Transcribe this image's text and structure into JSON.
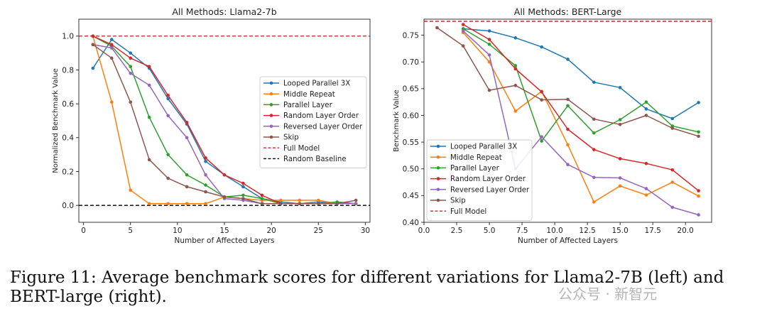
{
  "caption": "Figure 11: Average benchmark scores for different variations for Llama2-7B (left) and BERT-large (right).",
  "watermark": "公众号 · 新智元",
  "chart_data": [
    {
      "type": "line",
      "title": "All Methods: Llama2-7b",
      "xlabel": "Number of Affected Layers",
      "ylabel": "Normalized Benchmark Value",
      "xlim": [
        -0.5,
        30.5
      ],
      "ylim": [
        -0.1,
        1.1
      ],
      "xticks": [
        0,
        5,
        10,
        15,
        20,
        25,
        30
      ],
      "yticks": [
        0.0,
        0.2,
        0.4,
        0.6,
        0.8,
        1.0
      ],
      "ytick_labels": [
        "0.0",
        "0.2",
        "0.4",
        "0.6",
        "0.8",
        "1.0"
      ],
      "legend_position": "center-right",
      "series": [
        {
          "name": "Looped Parallel 3X",
          "color": "#1f77b4",
          "x": [
            1,
            3,
            5,
            7,
            9,
            11,
            13,
            15,
            17,
            19,
            21,
            23,
            25,
            27,
            29
          ],
          "y": [
            0.81,
            0.98,
            0.9,
            0.81,
            0.63,
            0.48,
            0.26,
            0.18,
            0.11,
            0.04,
            0.02,
            0.01,
            0.02,
            0.01,
            0.01
          ]
        },
        {
          "name": "Middle Repeat",
          "color": "#ff7f0e",
          "x": [
            1,
            3,
            5,
            7,
            9,
            11,
            13,
            15,
            17,
            19,
            21,
            23,
            25,
            27,
            29
          ],
          "y": [
            1.0,
            0.61,
            0.09,
            0.01,
            0.01,
            0.01,
            0.01,
            0.05,
            0.04,
            0.03,
            0.03,
            0.03,
            0.03,
            0.01,
            0.01
          ]
        },
        {
          "name": "Parallel Layer",
          "color": "#2ca02c",
          "x": [
            1,
            3,
            5,
            7,
            9,
            11,
            13,
            15,
            17,
            19,
            21,
            23,
            25,
            27,
            29
          ],
          "y": [
            1.0,
            0.94,
            0.82,
            0.52,
            0.3,
            0.18,
            0.12,
            0.05,
            0.06,
            0.04,
            0.01,
            0.01,
            0.01,
            0.02,
            0.01
          ]
        },
        {
          "name": "Random Layer Order",
          "color": "#d62728",
          "x": [
            1,
            3,
            5,
            7,
            9,
            11,
            13,
            15,
            17,
            19,
            21,
            23,
            25,
            27,
            29
          ],
          "y": [
            1.0,
            0.95,
            0.87,
            0.82,
            0.65,
            0.49,
            0.28,
            0.18,
            0.13,
            0.06,
            0.01,
            0.01,
            0.01,
            0.01,
            0.01
          ]
        },
        {
          "name": "Reversed Layer Order",
          "color": "#9467bd",
          "x": [
            1,
            3,
            5,
            7,
            9,
            11,
            13,
            15,
            17,
            19,
            21,
            23,
            25,
            27,
            29
          ],
          "y": [
            0.95,
            0.93,
            0.78,
            0.71,
            0.53,
            0.4,
            0.18,
            0.04,
            0.03,
            0.01,
            0.01,
            0.01,
            0.01,
            0.01,
            0.01
          ]
        },
        {
          "name": "Skip",
          "color": "#8c564b",
          "x": [
            1,
            3,
            5,
            7,
            9,
            11,
            13,
            15,
            17,
            19,
            21,
            23,
            25,
            27,
            29
          ],
          "y": [
            0.95,
            0.87,
            0.61,
            0.27,
            0.16,
            0.11,
            0.08,
            0.05,
            0.04,
            0.01,
            0.01,
            0.01,
            0.01,
            0.01,
            0.03
          ]
        }
      ],
      "reference_lines": [
        {
          "name": "Full Model",
          "value": 1.0,
          "color": "#d62728"
        },
        {
          "name": "Random Baseline",
          "value": 0.0,
          "color": "#000000"
        }
      ]
    },
    {
      "type": "line",
      "title": "All Methods: BERT-Large",
      "xlabel": "Number of Affected Layers",
      "ylabel": "Benchmark Value",
      "xlim": [
        0,
        22
      ],
      "ylim": [
        0.4,
        0.78
      ],
      "xticks": [
        0.0,
        2.5,
        5.0,
        7.5,
        10.0,
        12.5,
        15.0,
        17.5,
        20.0
      ],
      "xtick_labels": [
        "0.0",
        "2.5",
        "5.0",
        "7.5",
        "10.0",
        "12.5",
        "15.0",
        "17.5",
        "20.0"
      ],
      "yticks": [
        0.4,
        0.45,
        0.5,
        0.55,
        0.6,
        0.65,
        0.7,
        0.75
      ],
      "ytick_labels": [
        "0.40",
        "0.45",
        "0.50",
        "0.55",
        "0.60",
        "0.65",
        "0.70",
        "0.75"
      ],
      "legend_position": "lower-left",
      "series": [
        {
          "name": "Looped Parallel 3X",
          "color": "#1f77b4",
          "x": [
            3,
            5,
            7,
            9,
            11,
            13,
            15,
            17,
            19,
            21
          ],
          "y": [
            0.762,
            0.758,
            0.745,
            0.728,
            0.705,
            0.662,
            0.652,
            0.612,
            0.594,
            0.624
          ]
        },
        {
          "name": "Middle Repeat",
          "color": "#ff7f0e",
          "x": [
            3,
            5,
            7,
            9,
            11,
            13,
            15,
            17,
            19,
            21
          ],
          "y": [
            0.755,
            0.7,
            0.608,
            0.645,
            0.545,
            0.438,
            0.468,
            0.451,
            0.475,
            0.449
          ]
        },
        {
          "name": "Parallel Layer",
          "color": "#2ca02c",
          "x": [
            3,
            5,
            7,
            9,
            11,
            13,
            15,
            17,
            19,
            21
          ],
          "y": [
            0.762,
            0.733,
            0.693,
            0.552,
            0.618,
            0.567,
            0.592,
            0.625,
            0.58,
            0.569
          ]
        },
        {
          "name": "Random Layer Order",
          "color": "#d62728",
          "x": [
            3,
            5,
            7,
            9,
            11,
            13,
            15,
            17,
            19,
            21
          ],
          "y": [
            0.77,
            0.742,
            0.687,
            0.644,
            0.574,
            0.536,
            0.519,
            0.51,
            0.498,
            0.459
          ]
        },
        {
          "name": "Reversed Layer Order",
          "color": "#9467bd",
          "x": [
            3,
            5,
            7,
            9,
            11,
            13,
            15,
            17,
            19,
            21
          ],
          "y": [
            0.758,
            0.713,
            0.5,
            0.56,
            0.508,
            0.484,
            0.483,
            0.463,
            0.428,
            0.414
          ]
        },
        {
          "name": "Skip",
          "color": "#8c564b",
          "x": [
            1,
            3,
            5,
            7,
            9,
            11,
            13,
            15,
            17,
            19,
            21
          ],
          "y": [
            0.764,
            0.73,
            0.647,
            0.656,
            0.629,
            0.63,
            0.593,
            0.583,
            0.6,
            0.576,
            0.561
          ]
        }
      ],
      "reference_lines": [
        {
          "name": "Full Model",
          "value": 0.776,
          "color": "#d62728"
        }
      ]
    }
  ]
}
